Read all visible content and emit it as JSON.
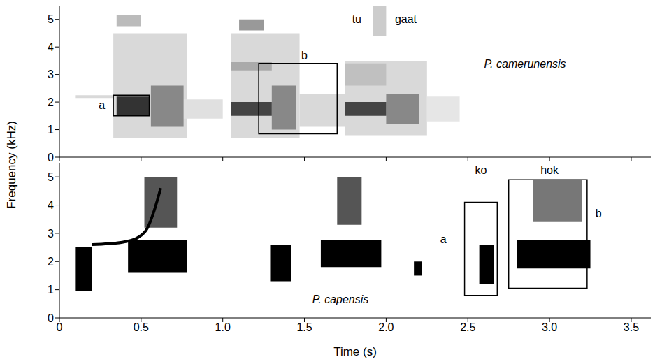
{
  "chart_data": [
    {
      "type": "spectrogram",
      "ylabel": "Frequency (kHz)",
      "xlim": [
        0,
        3.62
      ],
      "ylim": [
        0,
        5.5
      ],
      "xticks": [
        0,
        0.5,
        {
          "value": 1,
          "label": "1.0"
        },
        1.5,
        {
          "value": 2,
          "label": "2.0"
        },
        2.5,
        {
          "value": 3,
          "label": "3.0"
        },
        3.5
      ],
      "yticks": [
        0,
        1,
        2,
        3,
        4,
        5
      ],
      "tick_labels": "y",
      "segments": [
        {
          "x": [
            0.1,
            0.33
          ],
          "y": [
            2.15,
            2.25
          ],
          "color": "#d9d9d9"
        },
        {
          "x": [
            0.33,
            0.78
          ],
          "y": [
            0.7,
            4.5
          ],
          "color": "#d9d9d9"
        },
        {
          "x": [
            0.35,
            0.5
          ],
          "y": [
            4.75,
            5.15
          ],
          "color": "#bbbbbb"
        },
        {
          "x": [
            0.75,
            1.0
          ],
          "y": [
            1.4,
            2.1
          ],
          "color": "#e0e0e0"
        },
        {
          "x": [
            1.05,
            1.47
          ],
          "y": [
            0.7,
            4.5
          ],
          "color": "#d9d9d9"
        },
        {
          "x": [
            1.47,
            1.75
          ],
          "y": [
            1.1,
            2.3
          ],
          "color": "#d9d9d9"
        },
        {
          "x": [
            1.1,
            1.25
          ],
          "y": [
            4.6,
            5.0
          ],
          "color": "#999999"
        },
        {
          "x": [
            1.05,
            1.3
          ],
          "y": [
            3.15,
            3.45
          ],
          "color": "#aaaaaa"
        },
        {
          "x": [
            1.75,
            2.25
          ],
          "y": [
            0.8,
            3.5
          ],
          "color": "#d9d9d9"
        },
        {
          "x": [
            2.25,
            2.45
          ],
          "y": [
            1.3,
            2.2
          ],
          "color": "#e6e6e6"
        },
        {
          "x": [
            1.92,
            2.0
          ],
          "y": [
            4.4,
            5.5
          ],
          "color": "#cccccc"
        },
        {
          "x": [
            1.75,
            2.0
          ],
          "y": [
            2.6,
            3.4
          ],
          "color": "#c0c0c0"
        },
        {
          "x": [
            0.56,
            0.76
          ],
          "y": [
            1.1,
            2.6
          ],
          "color": "#888888"
        },
        {
          "x": [
            1.3,
            1.45
          ],
          "y": [
            1.0,
            2.6
          ],
          "color": "#888888"
        },
        {
          "x": [
            2.0,
            2.2
          ],
          "y": [
            1.2,
            2.3
          ],
          "color": "#888888"
        },
        {
          "x": [
            0.35,
            0.55
          ],
          "y": [
            1.5,
            2.2
          ],
          "color": "#333333"
        },
        {
          "x": [
            1.05,
            1.3
          ],
          "y": [
            1.5,
            2.0
          ],
          "color": "#444444"
        },
        {
          "x": [
            1.75,
            2.0
          ],
          "y": [
            1.5,
            2.0
          ],
          "color": "#444444"
        }
      ],
      "boxes": [
        {
          "x": [
            0.33,
            0.55
          ],
          "y": [
            1.5,
            2.25
          ]
        },
        {
          "x": [
            1.22,
            1.7
          ],
          "y": [
            0.85,
            3.4
          ]
        }
      ],
      "annotations": [
        {
          "text": "a",
          "x": 0.26,
          "y": 1.9
        },
        {
          "text": "b",
          "x": 1.5,
          "y": 3.7
        },
        {
          "text": "tu",
          "x": 1.82,
          "y": 5.0
        },
        {
          "text": "gaat",
          "x": 2.12,
          "y": 5.0
        },
        {
          "text": "P. camerunensis",
          "x": 2.85,
          "y": 3.4
        }
      ]
    },
    {
      "type": "spectrogram",
      "xlabel": "Time (s)",
      "xlim": [
        0,
        3.62
      ],
      "ylim": [
        0,
        5.5
      ],
      "xticks": [
        0,
        0.5,
        {
          "value": 1,
          "label": "1.0"
        },
        1.5,
        {
          "value": 2,
          "label": "2.0"
        },
        2.5,
        {
          "value": 3,
          "label": "3.0"
        },
        3.5
      ],
      "yticks": [
        0,
        1,
        2,
        3,
        4,
        5
      ],
      "segments": [
        {
          "x": [
            0.1,
            0.2
          ],
          "y": [
            0.95,
            2.5
          ],
          "color": "#000000"
        },
        {
          "x": [
            0.42,
            0.78
          ],
          "y": [
            1.6,
            2.75
          ],
          "color": "#000000"
        },
        {
          "x": [
            1.29,
            1.42
          ],
          "y": [
            1.3,
            2.6
          ],
          "color": "#000000"
        },
        {
          "x": [
            1.6,
            1.97
          ],
          "y": [
            1.8,
            2.75
          ],
          "color": "#000000"
        },
        {
          "x": [
            2.17,
            2.22
          ],
          "y": [
            1.5,
            2.0
          ],
          "color": "#000000"
        },
        {
          "x": [
            2.57,
            2.66
          ],
          "y": [
            1.2,
            2.6
          ],
          "color": "#000000"
        },
        {
          "x": [
            2.8,
            3.25
          ],
          "y": [
            1.75,
            2.75
          ],
          "color": "#000000"
        },
        {
          "x": [
            0.52,
            0.72
          ],
          "y": [
            3.2,
            5.0
          ],
          "color": "#555555"
        },
        {
          "x": [
            1.7,
            1.85
          ],
          "y": [
            3.3,
            5.0
          ],
          "color": "#555555"
        },
        {
          "x": [
            2.9,
            3.2
          ],
          "y": [
            3.4,
            4.9
          ],
          "color": "#777777"
        }
      ],
      "curve": {
        "x": [
          0.2,
          0.3,
          0.4,
          0.48,
          0.54,
          0.58,
          0.62
        ],
        "y": [
          2.6,
          2.63,
          2.7,
          2.85,
          3.2,
          3.8,
          4.6
        ],
        "color": "#000000"
      },
      "boxes": [
        {
          "x": [
            2.48,
            2.68
          ],
          "y": [
            0.8,
            4.1
          ]
        },
        {
          "x": [
            2.75,
            3.23
          ],
          "y": [
            1.05,
            4.9
          ]
        }
      ],
      "annotations": [
        {
          "text": "ko",
          "x": 2.58,
          "y": 5.25
        },
        {
          "text": "hok",
          "x": 3.0,
          "y": 5.25
        },
        {
          "text": "a",
          "x": 2.35,
          "y": 2.8
        },
        {
          "text": "b",
          "x": 3.3,
          "y": 3.7
        },
        {
          "text": "P. capensis",
          "x": 1.72,
          "y": 0.65
        }
      ]
    }
  ]
}
